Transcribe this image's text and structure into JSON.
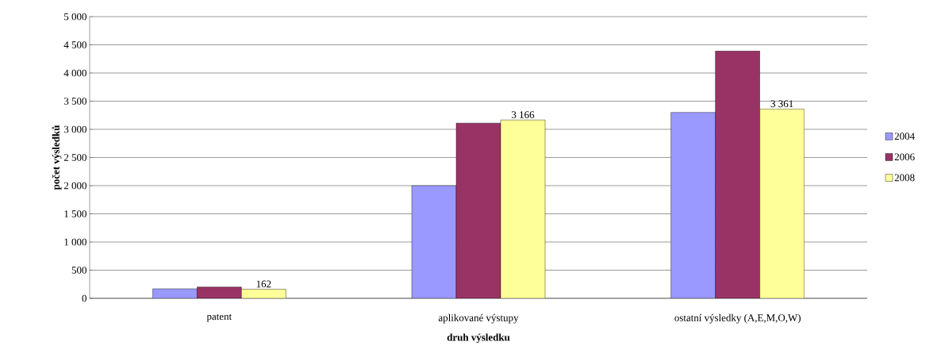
{
  "chart_data": {
    "type": "bar",
    "xlabel": "druh výsledku",
    "ylabel": "počet výsledků",
    "categories": [
      "patent",
      "aplikované výstupy",
      "ostatní výsledky (A,E,M,O,W)"
    ],
    "series": [
      {
        "name": "2004",
        "color": "#9999ff",
        "values": [
          170,
          2000,
          3300
        ]
      },
      {
        "name": "2006",
        "color": "#993366",
        "values": [
          200,
          3110,
          4390
        ]
      },
      {
        "name": "2008",
        "color": "#ffff99",
        "values": [
          162,
          3166,
          3361
        ],
        "value_labels": [
          "162",
          "3 166",
          "3 361"
        ]
      }
    ],
    "ylim": [
      0,
      5000
    ],
    "yticks": [
      0,
      500,
      {
        "value": 1000,
        "label": "1 000"
      },
      {
        "value": 1500,
        "label": "1 500"
      },
      {
        "value": 2000,
        "label": "2 000"
      },
      {
        "value": 2500,
        "label": "2 500"
      },
      {
        "value": 3000,
        "label": "3 000"
      },
      {
        "value": 3500,
        "label": "3 500"
      },
      {
        "value": 4000,
        "label": "4 000"
      },
      {
        "value": 4500,
        "label": "4 500"
      },
      {
        "value": 5000,
        "label": "5 000"
      }
    ],
    "grid": "y",
    "legend": "right"
  }
}
